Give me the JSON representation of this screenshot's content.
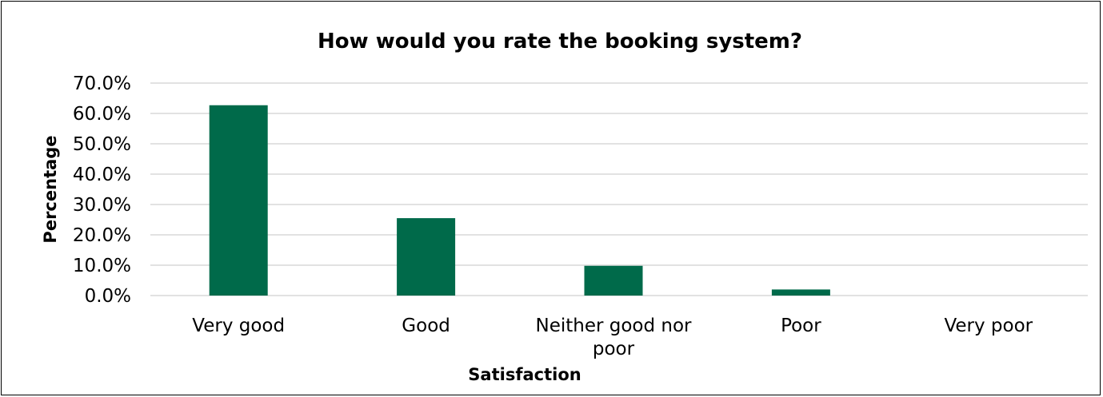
{
  "chart_data": {
    "type": "bar",
    "title": "How would you rate the booking system?",
    "xlabel": "Satisfaction",
    "ylabel": "Percentage",
    "categories": [
      "Very good",
      "Good",
      "Neither good nor poor",
      "Poor",
      "Very poor"
    ],
    "category_lines": [
      [
        "Very good"
      ],
      [
        "Good"
      ],
      [
        "Neither good nor",
        "poor"
      ],
      [
        "Poor"
      ],
      [
        "Very poor"
      ]
    ],
    "values": [
      62.7,
      25.5,
      9.8,
      2.0,
      0.0
    ],
    "ylim": [
      0,
      70
    ],
    "ytick_values": [
      0,
      10,
      20,
      30,
      40,
      50,
      60,
      70
    ],
    "ytick_labels": [
      "0.0%",
      "10.0%",
      "20.0%",
      "30.0%",
      "40.0%",
      "50.0%",
      "60.0%",
      "70.0%"
    ],
    "grid": true,
    "legend": "none",
    "bar_color": "#006a4a",
    "grid_color": "#d9d9d9"
  }
}
